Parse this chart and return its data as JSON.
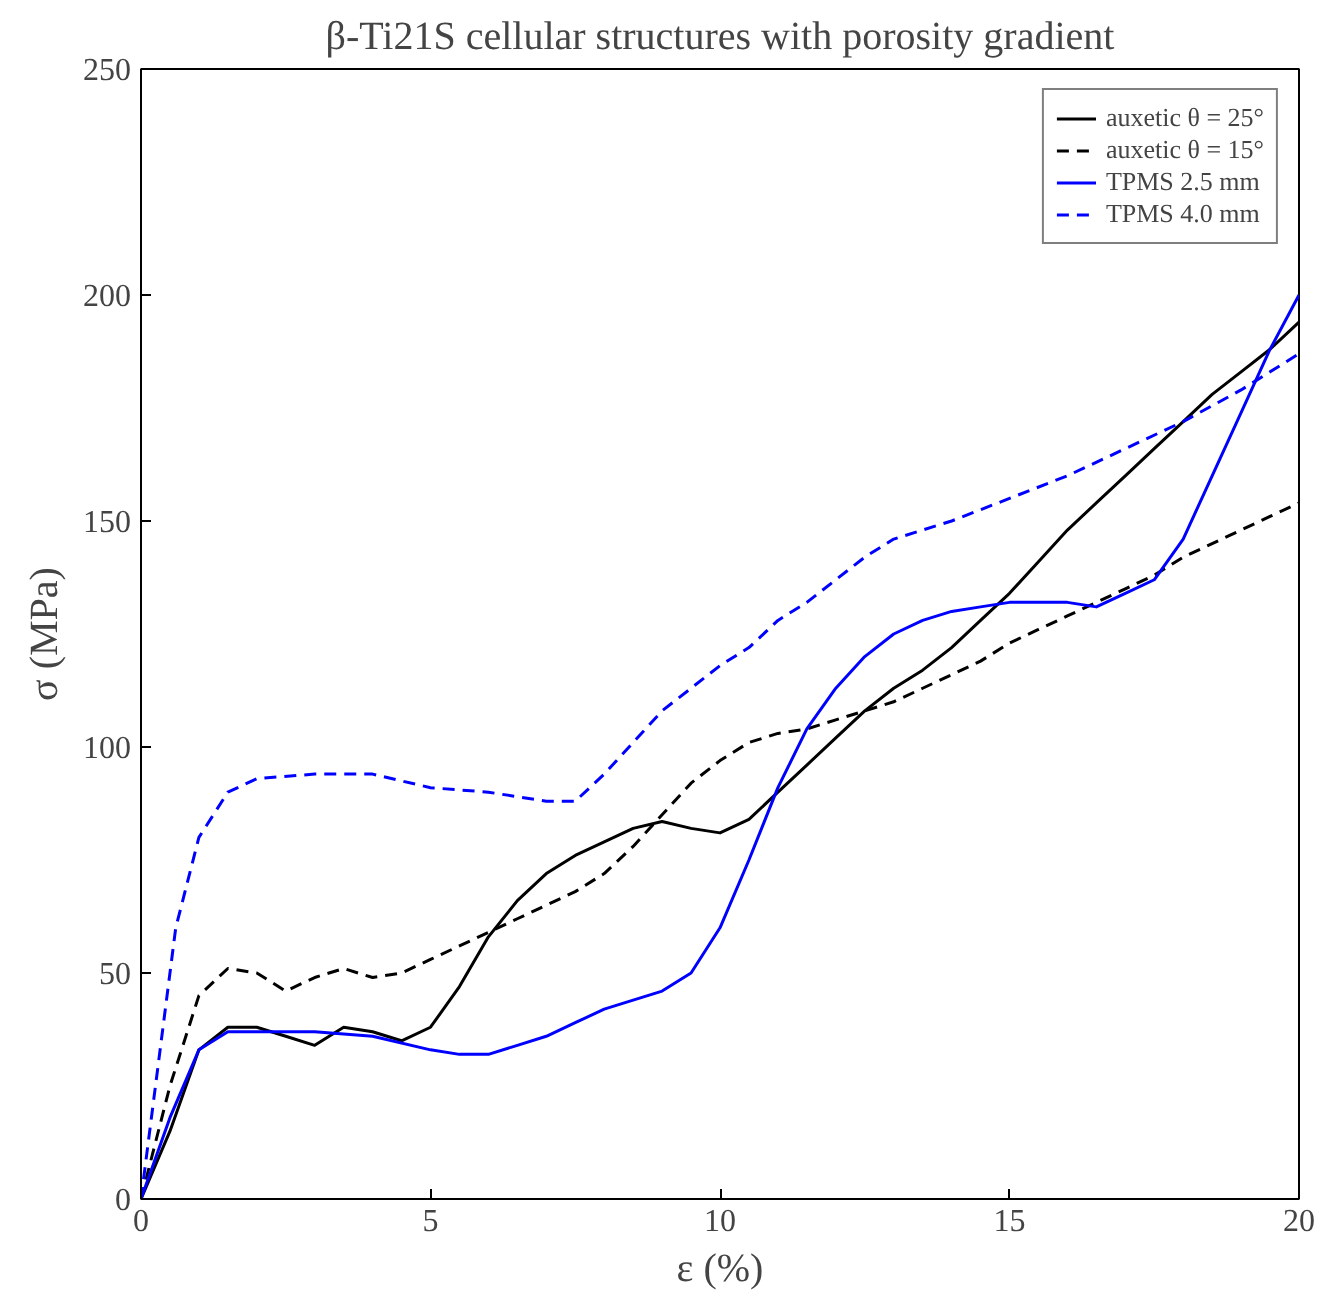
{
  "chart_data": {
    "type": "line",
    "title": "β-Ti21S cellular structures with porosity gradient",
    "xlabel": "ε (%)",
    "ylabel": "σ (MPa)",
    "xlim": [
      0,
      20
    ],
    "ylim": [
      0,
      250
    ],
    "xticks": [
      0,
      5,
      10,
      15,
      20
    ],
    "yticks": [
      0,
      50,
      100,
      150,
      200,
      250
    ],
    "grid": false,
    "legend": "top right",
    "marker": "none",
    "series": [
      {
        "name": "auxetic θ = 25°",
        "color": "#000000",
        "line_style": "solid",
        "x": [
          0,
          0.5,
          1,
          1.5,
          2,
          2.5,
          3,
          3.5,
          4,
          4.5,
          5,
          5.5,
          6,
          6.5,
          7,
          7.5,
          8,
          8.5,
          9,
          9.5,
          10,
          10.5,
          11,
          11.5,
          12,
          12.5,
          13,
          13.5,
          14,
          14.5,
          15,
          15.5,
          16,
          16.5,
          17,
          17.5,
          18,
          18.5,
          19,
          19.5,
          20
        ],
        "values": [
          0,
          15,
          33,
          38,
          38,
          36,
          34,
          38,
          37,
          35,
          38,
          47,
          58,
          66,
          72,
          76,
          79,
          82,
          83.5,
          82,
          81,
          84,
          90,
          96,
          102,
          108,
          113,
          117,
          122,
          128,
          134,
          141,
          148,
          154,
          160,
          166,
          172,
          178,
          183,
          188,
          194
        ]
      },
      {
        "name": "auxetic θ = 15°",
        "color": "#000000",
        "line_style": "dashed",
        "x": [
          0,
          0.5,
          1,
          1.5,
          2,
          2.5,
          3,
          3.5,
          4,
          4.5,
          5,
          5.5,
          6,
          6.5,
          7,
          7.5,
          8,
          8.5,
          9,
          9.5,
          10,
          10.5,
          11,
          11.5,
          12,
          12.5,
          13,
          13.5,
          14,
          14.5,
          15,
          15.5,
          16,
          16.5,
          17,
          17.5,
          18,
          18.5,
          19,
          19.5,
          20
        ],
        "values": [
          0,
          25,
          45,
          51,
          50,
          46,
          49,
          51,
          49,
          50,
          53,
          56,
          59,
          62,
          65,
          68,
          72,
          78,
          85,
          92,
          97,
          101,
          103,
          104,
          106,
          108,
          110,
          113,
          116,
          119,
          123,
          126,
          129,
          132,
          135,
          138,
          142,
          145,
          148,
          151,
          154
        ]
      },
      {
        "name": "TPMS 2.5 mm",
        "color": "#0000ff",
        "line_style": "solid",
        "x": [
          0,
          0.5,
          1,
          1.5,
          2,
          3,
          4,
          5,
          5.5,
          6,
          6.5,
          7,
          7.5,
          8,
          8.5,
          9,
          9.5,
          10,
          10.5,
          11,
          11.5,
          12,
          12.5,
          13,
          13.5,
          14,
          14.5,
          15,
          15.5,
          16,
          16.5,
          17,
          17.5,
          18,
          18.5,
          19,
          19.5,
          20
        ],
        "values": [
          0,
          18,
          33,
          37,
          37,
          37,
          36,
          33,
          32,
          32,
          34,
          36,
          39,
          42,
          44,
          46,
          50,
          60,
          75,
          91,
          104,
          113,
          120,
          125,
          128,
          130,
          131,
          132,
          132,
          132,
          131,
          134,
          137,
          146,
          160,
          174,
          188,
          200
        ]
      },
      {
        "name": "TPMS 4.0 mm",
        "color": "#0000ff",
        "line_style": "dashed",
        "x": [
          0,
          0.3,
          0.6,
          1,
          1.5,
          2,
          3,
          4,
          5,
          6,
          7,
          7.5,
          8,
          8.5,
          9,
          9.5,
          10,
          10.5,
          11,
          11.5,
          12,
          12.5,
          13,
          14,
          15,
          16,
          17,
          18,
          19,
          20
        ],
        "values": [
          0,
          30,
          60,
          80,
          90,
          93,
          94,
          94,
          91,
          90,
          88,
          88,
          94,
          101,
          108,
          113,
          118,
          122,
          128,
          132,
          137,
          142,
          146,
          150,
          155,
          160,
          166,
          172,
          179,
          187
        ]
      }
    ]
  }
}
